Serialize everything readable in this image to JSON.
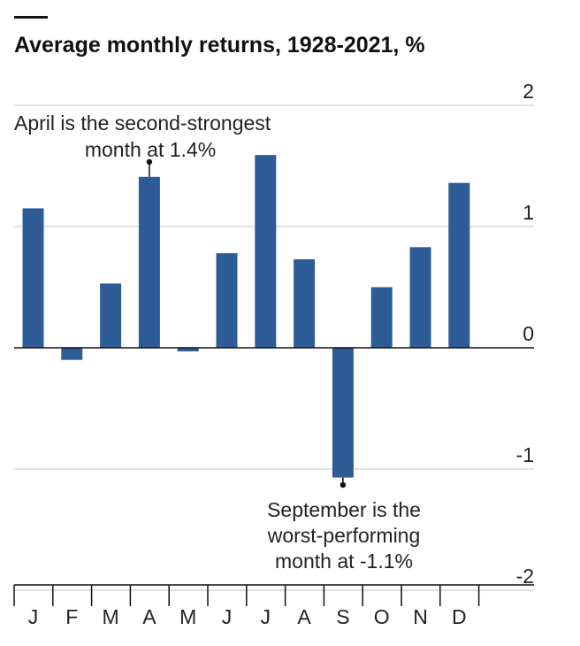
{
  "chart_data": {
    "type": "bar",
    "title": "Average monthly returns, 1928-2021, %",
    "categories": [
      "J",
      "F",
      "M",
      "A",
      "M",
      "J",
      "J",
      "A",
      "S",
      "O",
      "N",
      "D"
    ],
    "values": [
      1.15,
      -0.1,
      0.53,
      1.41,
      -0.03,
      0.78,
      1.59,
      0.73,
      -1.07,
      0.5,
      0.83,
      1.36
    ],
    "ylim": [
      -2,
      2
    ],
    "yticks": [
      "2",
      "1",
      "0",
      "-1",
      "-2"
    ],
    "ytick_values": [
      2,
      1,
      0,
      -1,
      -2
    ],
    "grid": true,
    "bar_color": "#2e5c97",
    "annotations": [
      {
        "lines": [
          "April is the second-strongest",
          "month at 1.4%"
        ],
        "category_index": 3
      },
      {
        "lines": [
          "September is the",
          "worst-performing",
          "month at -1.1%"
        ],
        "category_index": 8
      }
    ]
  }
}
